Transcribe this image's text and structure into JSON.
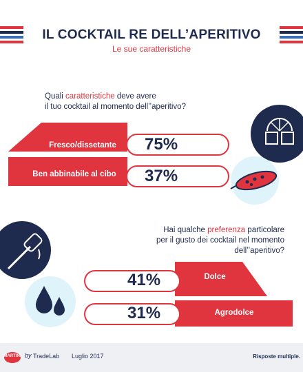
{
  "header": {
    "title": "IL COCKTAIL RE DELL’APERITIVO",
    "subtitle": "Le sue caratteristiche"
  },
  "chart_data": [
    {
      "type": "bar",
      "question_pre": "Quali ",
      "question_highlight": "caratteristiche",
      "question_post_line1": " deve avere",
      "question_line2": "il tuo cocktail al momento dell’’aperitivo?",
      "categories": [
        "Fresco/dissetante",
        "Ben abbinabile al cibo"
      ],
      "values": [
        75,
        37
      ],
      "value_labels": [
        "75%",
        "37%"
      ]
    },
    {
      "type": "bar",
      "question_line1_pre": "Hai qualche ",
      "question_highlight": "preferenza",
      "question_line1_post": " particolare",
      "question_line2": "per il gusto dei cocktail nel momento dell’’aperitivo?",
      "categories": [
        "Dolce",
        "Agrodolce"
      ],
      "values": [
        41,
        31
      ],
      "value_labels": [
        "41%",
        "31%"
      ]
    }
  ],
  "footer": {
    "brand": "MARTINI",
    "by": "by",
    "partner": "TradeLab",
    "date": "Luglio 2017",
    "note": "Risposte multiple."
  },
  "icons": [
    "ice-cubes-lemon-icon",
    "olive-icon",
    "honey-dipper-icon",
    "drops-icon"
  ],
  "colors": {
    "navy": "#1f2a4f",
    "red": "#e0343f"
  }
}
